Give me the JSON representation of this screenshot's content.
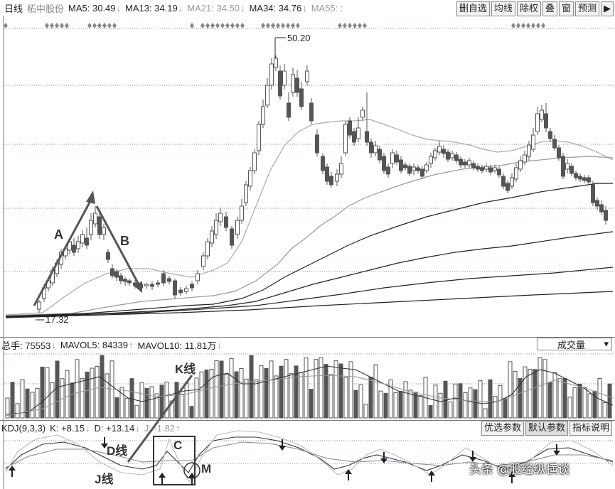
{
  "header": {
    "period": "日线",
    "stock": "柘中股份",
    "ma5": "MA5: 30.49",
    "ma13": "MA13: 34.19",
    "ma21": "MA21: 34.50",
    "ma34": "MA34: 34.76",
    "ma55": "MA55: :",
    "buttons": [
      "删自选",
      "均线",
      "除权",
      "叠",
      "窗",
      "预测",
      "▶"
    ]
  },
  "price_chart": {
    "high_label": "50.20",
    "low_label": "17.32",
    "annotations": {
      "A": "A",
      "B": "B"
    }
  },
  "volume": {
    "total": "总手: 75553",
    "mavol5": "MAVOL5: 84339",
    "mavol10": "MAVOL10: 11.81万",
    "dropdown": "成交量",
    "k_line": "K线"
  },
  "kdj": {
    "label": "KDJ(9,3,3)",
    "k": "K: +8.15",
    "d": "D: +13.14",
    "j": "J: -1.82",
    "buttons": [
      "优选参数",
      "默认参数",
      "指标说明"
    ],
    "d_line": "D线",
    "j_line": "J线",
    "c": "C",
    "m": "M"
  },
  "watermark": "头条 @股经纵横谈",
  "colors": {
    "candle": "#555555",
    "arrow": "#555555",
    "grid": "#7090c0"
  }
}
